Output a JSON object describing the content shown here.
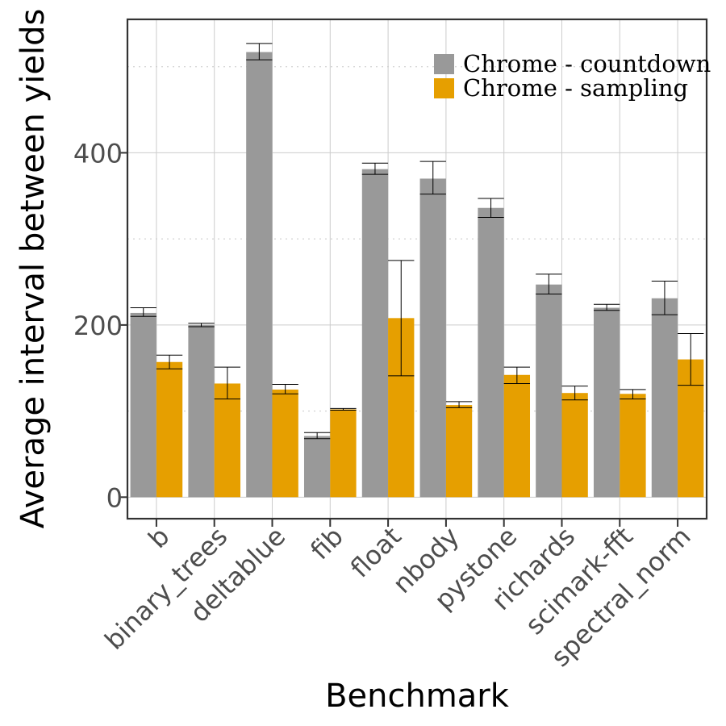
{
  "chart_data": {
    "type": "bar",
    "xlabel": "Benchmark",
    "ylabel": "Average interval between yields",
    "categories": [
      "b",
      "binary_trees",
      "deltablue",
      "fib",
      "float",
      "nbody",
      "pystone",
      "richards",
      "scimark-fft",
      "spectral_norm"
    ],
    "series": [
      {
        "name": "Chrome - countdown",
        "color": "#999999",
        "values": [
          214,
          200,
          517,
          71,
          381,
          370,
          336,
          247,
          220,
          231
        ],
        "error_low": [
          210,
          198,
          508,
          68,
          375,
          352,
          325,
          236,
          217,
          212
        ],
        "error_high": [
          220,
          202,
          527,
          75,
          388,
          390,
          347,
          259,
          224,
          251
        ]
      },
      {
        "name": "Chrome - sampling",
        "color": "#e69f00",
        "values": [
          157,
          132,
          125,
          102,
          208,
          107,
          142,
          121,
          120,
          160
        ],
        "error_low": [
          149,
          114,
          120,
          101,
          141,
          104,
          132,
          113,
          114,
          130
        ],
        "error_high": [
          165,
          151,
          131,
          103,
          275,
          111,
          151,
          129,
          125,
          190
        ]
      }
    ],
    "yticks": [
      0,
      200,
      400
    ],
    "ylim": [
      -25,
      555
    ],
    "grid": true,
    "legend_position": "top-right"
  }
}
